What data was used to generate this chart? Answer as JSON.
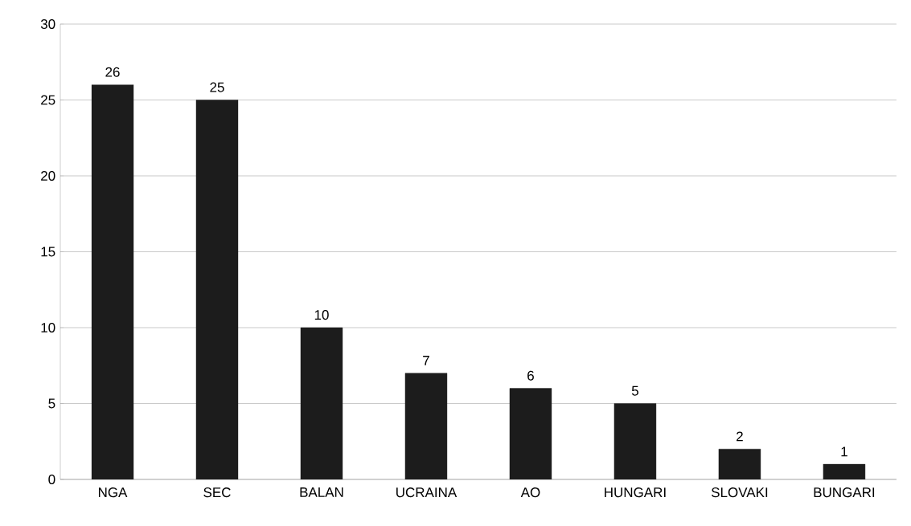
{
  "chart_data": {
    "type": "bar",
    "categories": [
      "NGA",
      "SEC",
      "BALAN",
      "UCRAINA",
      "AO",
      "HUNGARI",
      "SLOVAKI",
      "BUNGARI"
    ],
    "values": [
      26,
      25,
      10,
      7,
      6,
      5,
      2,
      1
    ],
    "color": "#1c1c1c",
    "ylim": [
      0,
      30
    ],
    "yticks": [
      0,
      5,
      10,
      15,
      20,
      25,
      30
    ],
    "grid": "y",
    "data_labels": true
  }
}
